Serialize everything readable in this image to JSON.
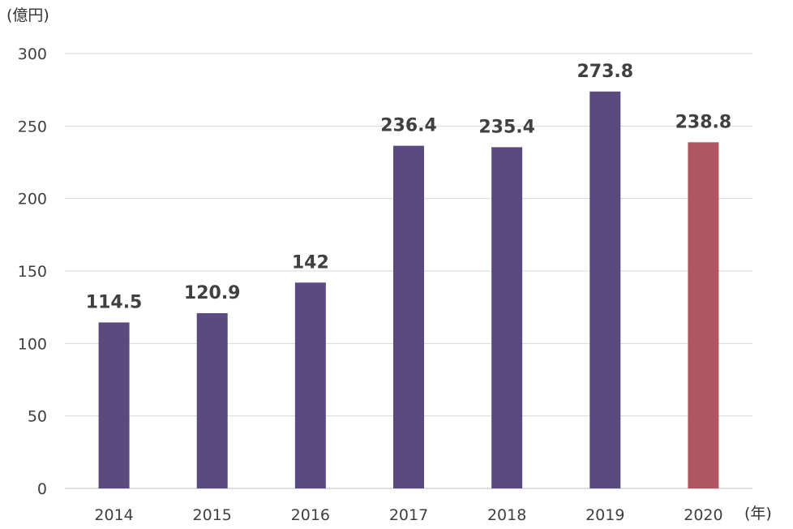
{
  "chart_data": {
    "type": "bar",
    "title": "",
    "y_unit_label": "(億円)",
    "x_unit_label": "(年)",
    "categories": [
      "2014",
      "2015",
      "2016",
      "2017",
      "2018",
      "2019",
      "2020"
    ],
    "values": [
      114.5,
      120.9,
      142,
      236.4,
      235.4,
      273.8,
      238.8
    ],
    "data_labels": [
      "114.5",
      "120.9",
      "142",
      "236.4",
      "235.4",
      "273.8",
      "238.8"
    ],
    "y_ticks": [
      0,
      50,
      100,
      150,
      200,
      250,
      300
    ],
    "ylim": [
      0,
      300
    ],
    "grid": true,
    "legend": "none",
    "bar_colors": [
      "#5b4a7f",
      "#5b4a7f",
      "#5b4a7f",
      "#5b4a7f",
      "#5b4a7f",
      "#5b4a7f",
      "#b05562"
    ],
    "gridline_color": "#d9d9d9",
    "axis_line_color": "#bfbfbf"
  }
}
